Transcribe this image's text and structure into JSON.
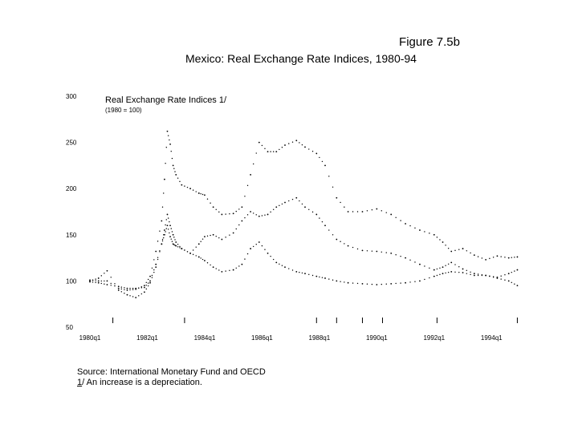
{
  "figure": {
    "title": "Figure 7.5b",
    "subtitle": "Mexico: Real Exchange Rate Indices, 1980-94"
  },
  "notes": {
    "source": "Source: International Monetary Fund and OECD",
    "footnote_mark": "1",
    "footnote_text": "/ An increase is a depreciation."
  },
  "chart_data": {
    "type": "scatter",
    "panel_label": "Real Exchange Rate Indices 1/",
    "panel_sublabel": "(1980 = 100)",
    "y_ticks": [
      "300",
      "250",
      "200",
      "150",
      "100",
      "50"
    ],
    "ylim": [
      50,
      300
    ],
    "xlim": [
      1980.0,
      1995.0
    ],
    "x_tick_labels": [
      "1980q1",
      "1982q1",
      "1984q1",
      "1986q1",
      "1988q1",
      "1990q1",
      "1992q1",
      "1994q1"
    ],
    "x_tick_positions": [
      1980.0,
      1982.0,
      1984.0,
      1986.0,
      1988.0,
      1990.0,
      1992.0,
      1994.0
    ],
    "event_markers": [
      1980.8,
      1983.3,
      1987.9,
      1988.6,
      1989.5,
      1990.2,
      1992.1,
      1994.9
    ],
    "grid": false,
    "series": [
      {
        "color": "#000000",
        "x": [
          1980.0,
          1980.3,
          1980.6,
          1981.0,
          1981.3,
          1981.6,
          1981.9,
          1982.1,
          1982.3,
          1982.5,
          1982.6,
          1982.7,
          1982.8,
          1982.9,
          1983.0,
          1983.2,
          1983.5,
          1983.8,
          1984.0,
          1984.3,
          1984.6,
          1985.0,
          1985.3,
          1985.6,
          1985.9,
          1986.2,
          1986.5,
          1986.8,
          1987.2,
          1987.5,
          1987.9,
          1988.2,
          1988.6,
          1989.0,
          1989.5,
          1990.0,
          1990.5,
          1991.0,
          1991.5,
          1992.0,
          1992.3,
          1992.6,
          1993.0,
          1993.4,
          1993.8,
          1994.2,
          1994.6,
          1994.9
        ],
        "y": [
          101,
          100,
          100,
          92,
          90,
          91,
          95,
          105,
          132,
          165,
          210,
          262,
          248,
          225,
          215,
          204,
          200,
          195,
          193,
          180,
          172,
          173,
          180,
          215,
          250,
          240,
          240,
          247,
          252,
          245,
          238,
          225,
          190,
          175,
          175,
          178,
          172,
          162,
          155,
          150,
          142,
          132,
          135,
          128,
          123,
          127,
          125,
          126
        ]
      },
      {
        "color": "#000000",
        "x": [
          1980.0,
          1980.3,
          1980.6,
          1981.0,
          1981.3,
          1981.6,
          1981.9,
          1982.1,
          1982.3,
          1982.5,
          1982.6,
          1982.7,
          1982.8,
          1982.9,
          1983.0,
          1983.2,
          1983.5,
          1983.8,
          1984.0,
          1984.3,
          1984.6,
          1985.0,
          1985.3,
          1985.6,
          1985.9,
          1986.2,
          1986.5,
          1986.8,
          1987.2,
          1987.5,
          1987.9,
          1988.2,
          1988.6,
          1989.0,
          1989.5,
          1990.0,
          1990.5,
          1991.0,
          1991.5,
          1992.0,
          1992.3,
          1992.6,
          1993.0,
          1993.4,
          1993.8,
          1994.2,
          1994.6,
          1994.9
        ],
        "y": [
          100,
          103,
          111,
          90,
          85,
          82,
          88,
          98,
          115,
          140,
          155,
          172,
          160,
          150,
          142,
          135,
          130,
          140,
          148,
          150,
          145,
          152,
          165,
          175,
          170,
          172,
          180,
          185,
          190,
          180,
          172,
          160,
          145,
          138,
          133,
          132,
          130,
          125,
          118,
          112,
          115,
          120,
          113,
          108,
          106,
          103,
          100,
          95
        ]
      },
      {
        "color": "#000000",
        "x": [
          1980.0,
          1980.3,
          1980.6,
          1981.0,
          1981.3,
          1981.6,
          1981.9,
          1982.1,
          1982.3,
          1982.5,
          1982.6,
          1982.7,
          1982.8,
          1982.9,
          1983.0,
          1983.2,
          1983.5,
          1983.8,
          1984.0,
          1984.3,
          1984.6,
          1985.0,
          1985.3,
          1985.6,
          1985.9,
          1986.2,
          1986.5,
          1986.8,
          1987.2,
          1987.5,
          1987.9,
          1988.2,
          1988.6,
          1989.0,
          1989.5,
          1990.0,
          1990.5,
          1991.0,
          1991.5,
          1992.0,
          1992.3,
          1992.6,
          1993.0,
          1993.4,
          1993.8,
          1994.2,
          1994.6,
          1994.9
        ],
        "y": [
          99,
          98,
          96,
          94,
          92,
          92,
          93,
          100,
          118,
          140,
          150,
          160,
          148,
          140,
          138,
          135,
          130,
          126,
          122,
          115,
          110,
          112,
          118,
          135,
          142,
          130,
          120,
          115,
          110,
          108,
          105,
          103,
          100,
          98,
          97,
          96,
          97,
          98,
          100,
          105,
          108,
          110,
          109,
          106,
          106,
          104,
          108,
          112
        ]
      }
    ]
  }
}
